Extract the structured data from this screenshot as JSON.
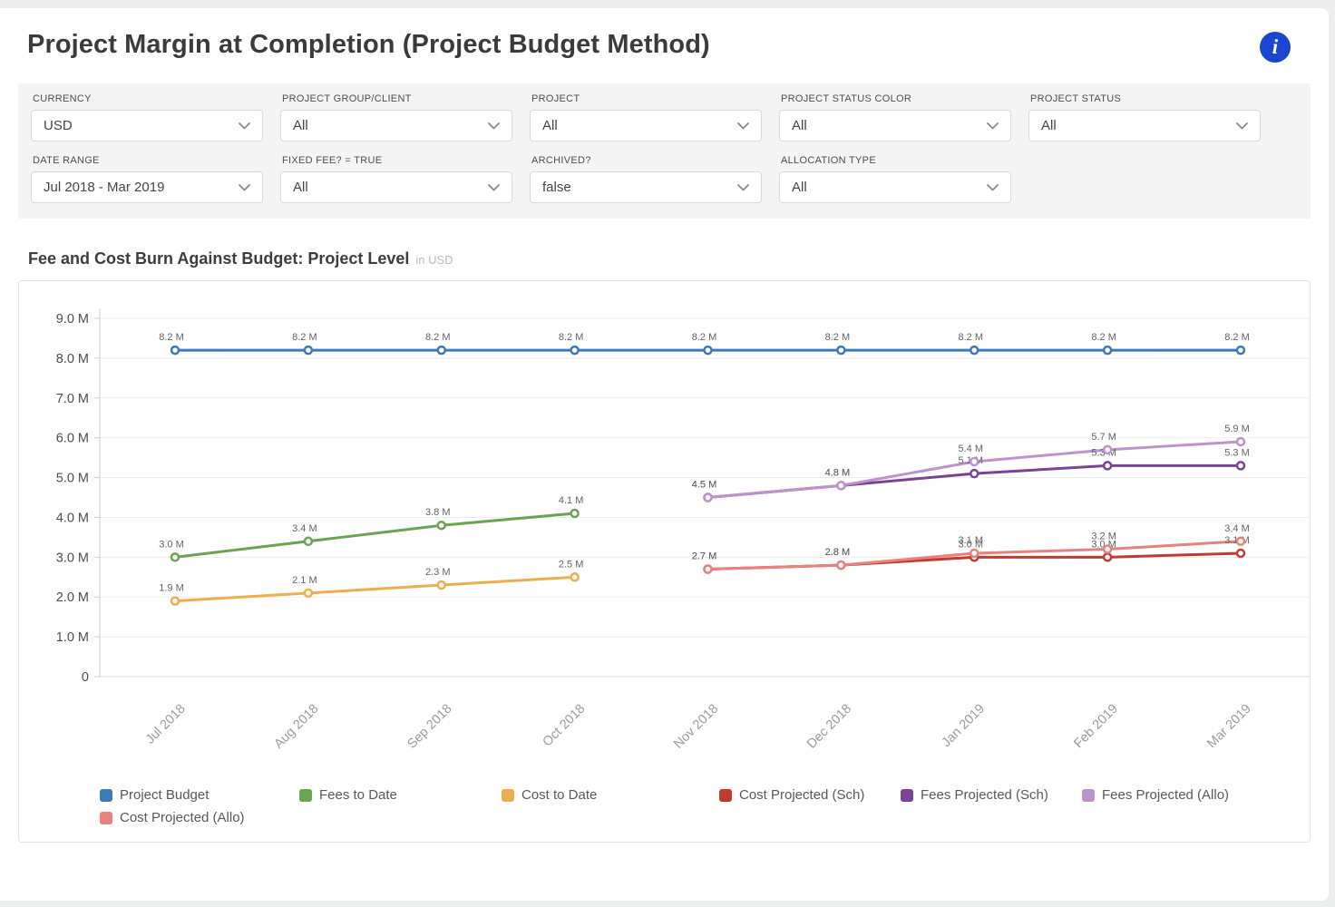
{
  "page": {
    "title": "Project Margin at Completion (Project Budget Method)"
  },
  "chart": {
    "title": "Fee and Cost Burn Against Budget: Project Level",
    "unit": "in USD"
  },
  "filters": [
    {
      "label": "CURRENCY",
      "value": "USD"
    },
    {
      "label": "PROJECT GROUP/CLIENT",
      "value": "All"
    },
    {
      "label": "PROJECT",
      "value": "All"
    },
    {
      "label": "PROJECT STATUS COLOR",
      "value": "All"
    },
    {
      "label": "PROJECT STATUS",
      "value": "All"
    },
    {
      "label": "DATE RANGE",
      "value": "Jul 2018 - Mar 2019"
    },
    {
      "label": "FIXED FEE? = TRUE",
      "value": "All"
    },
    {
      "label": "ARCHIVED?",
      "value": "false"
    },
    {
      "label": "ALLOCATION TYPE",
      "value": "All"
    }
  ],
  "chart_data": {
    "type": "line",
    "title": "Fee and Cost Burn Against Budget: Project Level",
    "subtitle": "in USD",
    "categories": [
      "Jul 2018",
      "Aug 2018",
      "Sep 2018",
      "Oct 2018",
      "Nov 2018",
      "Dec 2018",
      "Jan 2019",
      "Feb 2019",
      "Mar 2019"
    ],
    "ylim": [
      0,
      9
    ],
    "y_tick_labels": [
      "0",
      "1.0 M",
      "2.0 M",
      "3.0 M",
      "4.0 M",
      "5.0 M",
      "6.0 M",
      "7.0 M",
      "8.0 M",
      "9.0 M"
    ],
    "grid": true,
    "legend_position": "bottom",
    "value_label_suffix": " M",
    "series": [
      {
        "name": "Project Budget",
        "color": "#3d7ab7",
        "values": [
          8.2,
          8.2,
          8.2,
          8.2,
          8.2,
          8.2,
          8.2,
          8.2,
          8.2
        ]
      },
      {
        "name": "Fees to Date",
        "color": "#6aa551",
        "values": [
          3.0,
          3.4,
          3.8,
          4.1,
          null,
          null,
          null,
          null,
          null
        ]
      },
      {
        "name": "Cost to Date",
        "color": "#eead4e",
        "values": [
          1.9,
          2.1,
          2.3,
          2.5,
          null,
          null,
          null,
          null,
          null
        ]
      },
      {
        "name": "Cost Projected (Sch)",
        "color": "#c23a30",
        "values": [
          null,
          null,
          null,
          null,
          2.7,
          2.8,
          3.0,
          3.0,
          3.1
        ]
      },
      {
        "name": "Fees Projected (Sch)",
        "color": "#7b4397",
        "values": [
          null,
          null,
          null,
          null,
          4.5,
          4.8,
          5.1,
          5.3,
          5.3
        ]
      },
      {
        "name": "Fees Projected (Allo)",
        "color": "#bd93ce",
        "values": [
          null,
          null,
          null,
          null,
          4.5,
          4.8,
          5.4,
          5.7,
          5.9
        ]
      },
      {
        "name": "Cost Projected (Allo)",
        "color": "#e9827d",
        "values": [
          null,
          null,
          null,
          null,
          2.7,
          2.8,
          3.1,
          3.2,
          3.4
        ]
      }
    ]
  }
}
